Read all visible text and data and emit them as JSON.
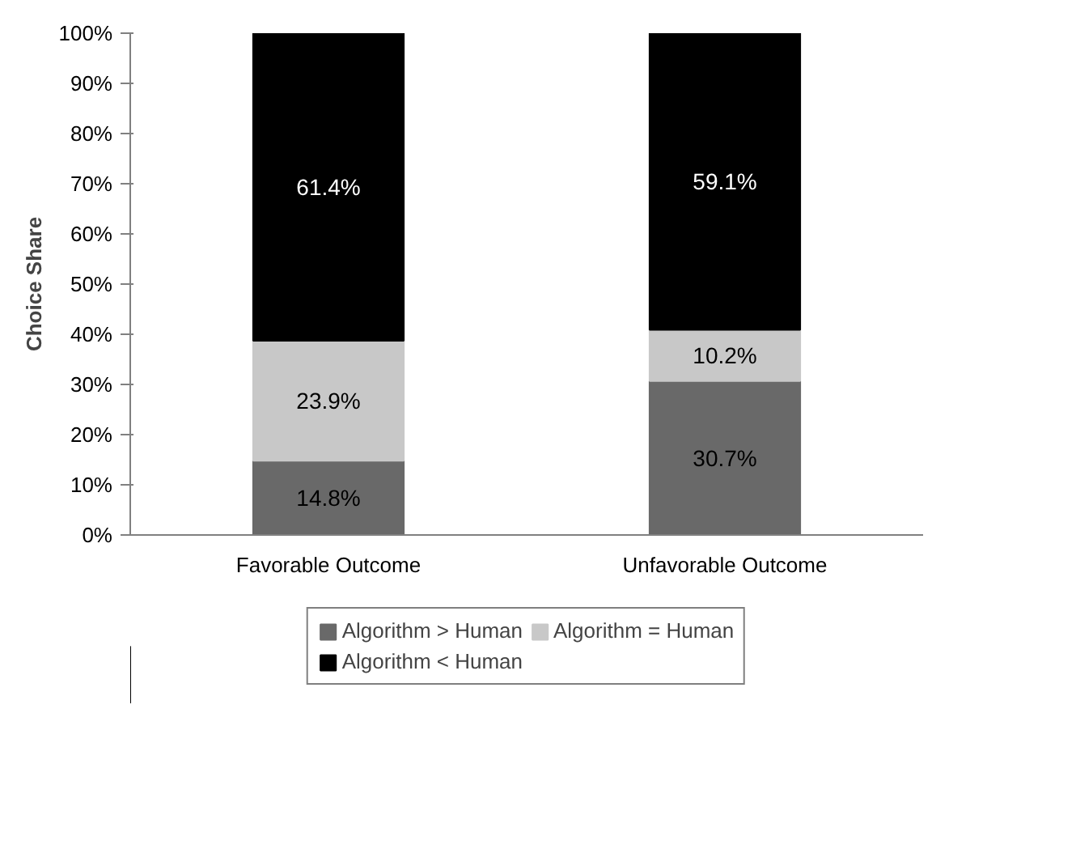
{
  "chart_data": {
    "type": "bar",
    "stacked": true,
    "ylabel": "Choice Share",
    "categories": [
      "Favorable Outcome",
      "Unfavorable Outcome"
    ],
    "series": [
      {
        "name": "Algorithm > Human",
        "color": "#696969",
        "values": [
          14.8,
          30.7
        ],
        "value_labels": [
          "14.8%",
          "30.7%"
        ]
      },
      {
        "name": "Algorithm = Human",
        "color": "#c8c8c8",
        "values": [
          23.9,
          10.2
        ],
        "value_labels": [
          "23.9%",
          "10.2%"
        ]
      },
      {
        "name": "Algorithm < Human",
        "color": "#000000",
        "values": [
          61.4,
          59.1
        ],
        "value_labels": [
          "61.4%",
          "59.1%"
        ]
      }
    ],
    "ylim": [
      0,
      100
    ],
    "yticks": [
      {
        "value": 0,
        "label": "0%"
      },
      {
        "value": 10,
        "label": "10%"
      },
      {
        "value": 20,
        "label": "20%"
      },
      {
        "value": 30,
        "label": "30%"
      },
      {
        "value": 40,
        "label": "40%"
      },
      {
        "value": 50,
        "label": "50%"
      },
      {
        "value": 60,
        "label": "60%"
      },
      {
        "value": 70,
        "label": "70%"
      },
      {
        "value": 80,
        "label": "80%"
      },
      {
        "value": 90,
        "label": "90%"
      },
      {
        "value": 100,
        "label": "100%"
      }
    ],
    "grid": false,
    "legend": "bottom"
  }
}
